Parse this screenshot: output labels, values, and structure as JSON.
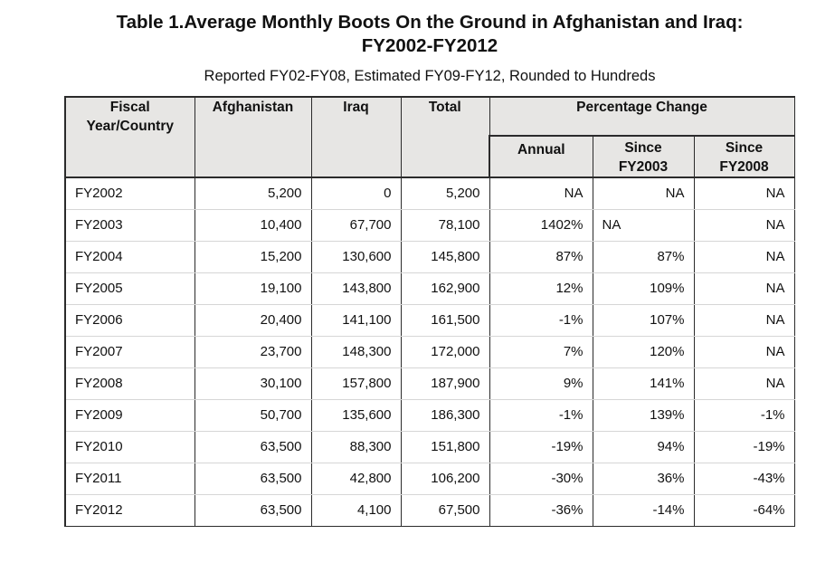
{
  "title_line1": "Table 1.Average Monthly Boots On the Ground in Afghanistan and Iraq:",
  "title_line2": "FY2002-FY2012",
  "subtitle": "Reported FY02-FY08, Estimated FY09-FY12, Rounded to Hundreds",
  "headers": {
    "fiscal_line1": "Fiscal",
    "fiscal_line2": "Year/Country",
    "afghanistan": "Afghanistan",
    "iraq": "Iraq",
    "total": "Total",
    "percentage_change": "Percentage Change",
    "annual": "Annual",
    "since2003_line1": "Since",
    "since2003_line2": "FY2003",
    "since2008_line1": "Since",
    "since2008_line2": "FY2008"
  },
  "rows": [
    {
      "year": "FY2002",
      "afghanistan": "5,200",
      "iraq": "0",
      "total": "5,200",
      "annual": "NA",
      "since2003": "NA",
      "since2008": "NA"
    },
    {
      "year": "FY2003",
      "afghanistan": "10,400",
      "iraq": "67,700",
      "total": "78,100",
      "annual": "1402%",
      "since2003": "NA",
      "since2008": "NA"
    },
    {
      "year": "FY2004",
      "afghanistan": "15,200",
      "iraq": "130,600",
      "total": "145,800",
      "annual": "87%",
      "since2003": "87%",
      "since2008": "NA"
    },
    {
      "year": "FY2005",
      "afghanistan": "19,100",
      "iraq": "143,800",
      "total": "162,900",
      "annual": "12%",
      "since2003": "109%",
      "since2008": "NA"
    },
    {
      "year": "FY2006",
      "afghanistan": "20,400",
      "iraq": "141,100",
      "total": "161,500",
      "annual": "-1%",
      "since2003": "107%",
      "since2008": "NA"
    },
    {
      "year": "FY2007",
      "afghanistan": "23,700",
      "iraq": "148,300",
      "total": "172,000",
      "annual": "7%",
      "since2003": "120%",
      "since2008": "NA"
    },
    {
      "year": "FY2008",
      "afghanistan": "30,100",
      "iraq": "157,800",
      "total": "187,900",
      "annual": "9%",
      "since2003": "141%",
      "since2008": "NA"
    },
    {
      "year": "FY2009",
      "afghanistan": "50,700",
      "iraq": "135,600",
      "total": "186,300",
      "annual": "-1%",
      "since2003": "139%",
      "since2008": "-1%"
    },
    {
      "year": "FY2010",
      "afghanistan": "63,500",
      "iraq": "88,300",
      "total": "151,800",
      "annual": "-19%",
      "since2003": "94%",
      "since2008": "-19%"
    },
    {
      "year": "FY2011",
      "afghanistan": "63,500",
      "iraq": "42,800",
      "total": "106,200",
      "annual": "-30%",
      "since2003": "36%",
      "since2008": "-43%"
    },
    {
      "year": "FY2012",
      "afghanistan": "63,500",
      "iraq": "4,100",
      "total": "67,500",
      "annual": "-36%",
      "since2003": "-14%",
      "since2008": "-64%"
    }
  ]
}
